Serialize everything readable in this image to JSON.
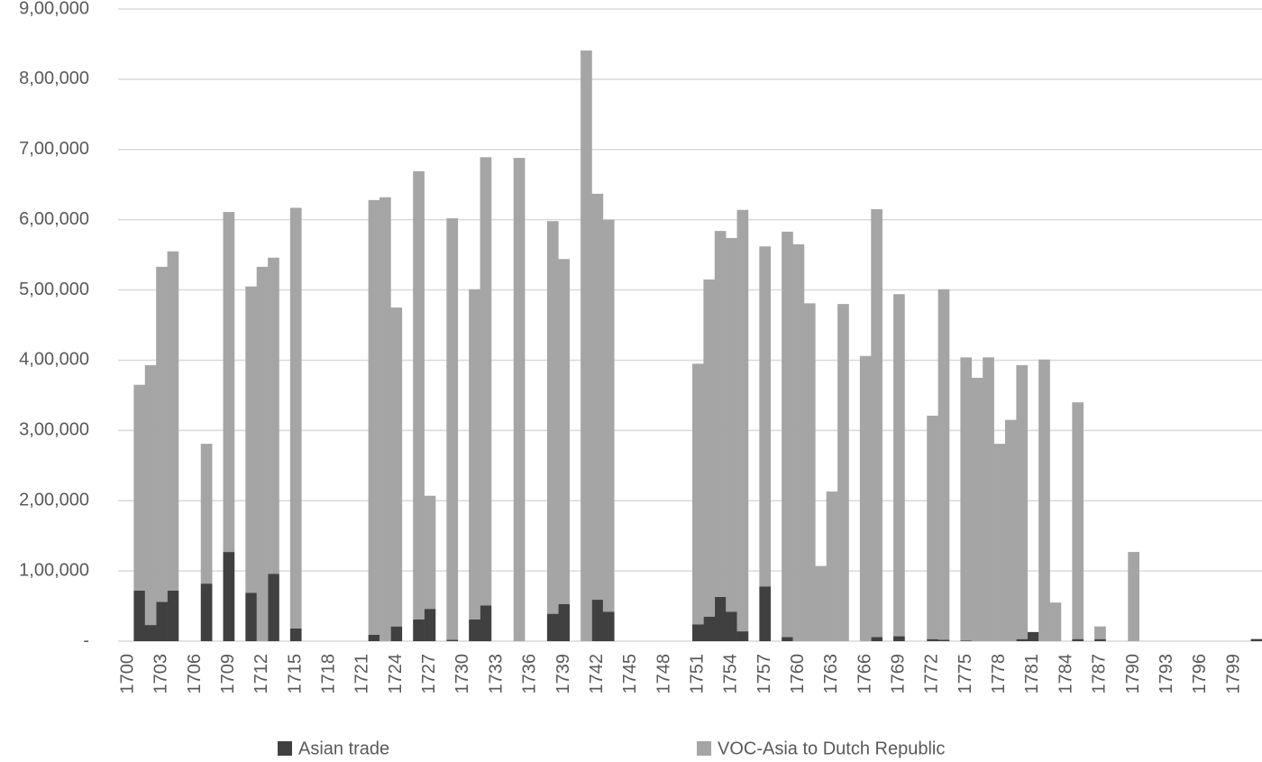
{
  "chart_data": {
    "type": "stacked_bar",
    "categories": [
      "1700",
      null,
      null,
      "1703",
      null,
      null,
      "1706",
      null,
      null,
      "1709",
      null,
      null,
      "1712",
      null,
      null,
      "1715",
      null,
      null,
      "1718",
      null,
      null,
      "1721",
      null,
      null,
      "1724",
      null,
      null,
      "1727",
      null,
      null,
      "1730",
      null,
      null,
      "1733",
      null,
      null,
      "1736",
      null,
      null,
      "1739",
      null,
      null,
      "1742",
      null,
      null,
      "1745",
      null,
      null,
      "1748",
      null,
      null,
      "1751",
      null,
      null,
      "1754",
      null,
      null,
      "1757",
      null,
      null,
      "1760",
      null,
      null,
      "1763",
      null,
      null,
      "1766",
      null,
      null,
      "1769",
      null,
      null,
      "1772",
      null,
      null,
      "1775",
      null,
      null,
      "1778",
      null,
      null,
      "1781",
      null,
      null,
      "1784",
      null,
      null,
      "1787",
      null,
      null,
      "1790",
      null,
      null,
      "1793",
      null,
      null,
      "1796",
      null,
      null,
      "1799",
      null,
      null
    ],
    "series": [
      {
        "name": "Asian trade",
        "color": "#404040",
        "values": [
          null,
          72000,
          23000,
          56000,
          72000,
          null,
          null,
          82000,
          null,
          127000,
          null,
          69000,
          null,
          96000,
          null,
          18000,
          null,
          null,
          null,
          null,
          null,
          null,
          9000,
          null,
          21000,
          null,
          31000,
          46000,
          null,
          2000,
          null,
          31000,
          51000,
          null,
          null,
          null,
          null,
          null,
          39000,
          53000,
          null,
          null,
          59000,
          42000,
          null,
          null,
          null,
          null,
          null,
          null,
          null,
          24000,
          35000,
          63000,
          42000,
          14000,
          null,
          78000,
          null,
          6000,
          null,
          null,
          null,
          null,
          null,
          null,
          null,
          6000,
          null,
          7000,
          null,
          null,
          3000,
          2000,
          null,
          1000,
          null,
          null,
          null,
          null,
          3000,
          13000,
          null,
          null,
          null,
          3000,
          null,
          3000,
          null,
          null,
          null,
          null,
          null,
          null,
          null,
          null,
          null,
          null,
          null,
          null,
          null,
          3000
        ]
      },
      {
        "name": "VOC-Asia to Dutch Republic",
        "color": "#a5a5a5",
        "values": [
          null,
          293000,
          370000,
          477000,
          483000,
          null,
          null,
          199000,
          null,
          484000,
          null,
          436000,
          533000,
          450000,
          null,
          599000,
          null,
          null,
          null,
          null,
          null,
          null,
          619000,
          632000,
          454000,
          null,
          638000,
          161000,
          null,
          600000,
          null,
          470000,
          638000,
          null,
          null,
          688000,
          null,
          null,
          559000,
          491000,
          null,
          841000,
          578000,
          558000,
          null,
          null,
          null,
          null,
          null,
          null,
          null,
          371000,
          480000,
          521000,
          532000,
          600000,
          null,
          484000,
          null,
          577000,
          565000,
          481000,
          107000,
          213000,
          480000,
          null,
          406000,
          609000,
          null,
          487000,
          null,
          null,
          318000,
          499000,
          null,
          403000,
          375000,
          404000,
          281000,
          315000,
          390000,
          null,
          401000,
          55000,
          null,
          337000,
          null,
          18000,
          null,
          null,
          127000,
          null,
          null,
          null,
          null,
          null,
          null,
          null,
          null,
          null,
          null,
          null
        ]
      }
    ],
    "ylim": [
      0,
      900000
    ],
    "yticks": [
      {
        "value": 0,
        "label": "-"
      },
      {
        "value": 100000,
        "label": "1,00,000"
      },
      {
        "value": 200000,
        "label": "2,00,000"
      },
      {
        "value": 300000,
        "label": "3,00,000"
      },
      {
        "value": 400000,
        "label": "4,00,000"
      },
      {
        "value": 500000,
        "label": "5,00,000"
      },
      {
        "value": 600000,
        "label": "6,00,000"
      },
      {
        "value": 700000,
        "label": "7,00,000"
      },
      {
        "value": 800000,
        "label": "8,00,000"
      },
      {
        "value": 900000,
        "label": "9,00,000"
      }
    ],
    "grid": true,
    "legend": "bottom"
  }
}
